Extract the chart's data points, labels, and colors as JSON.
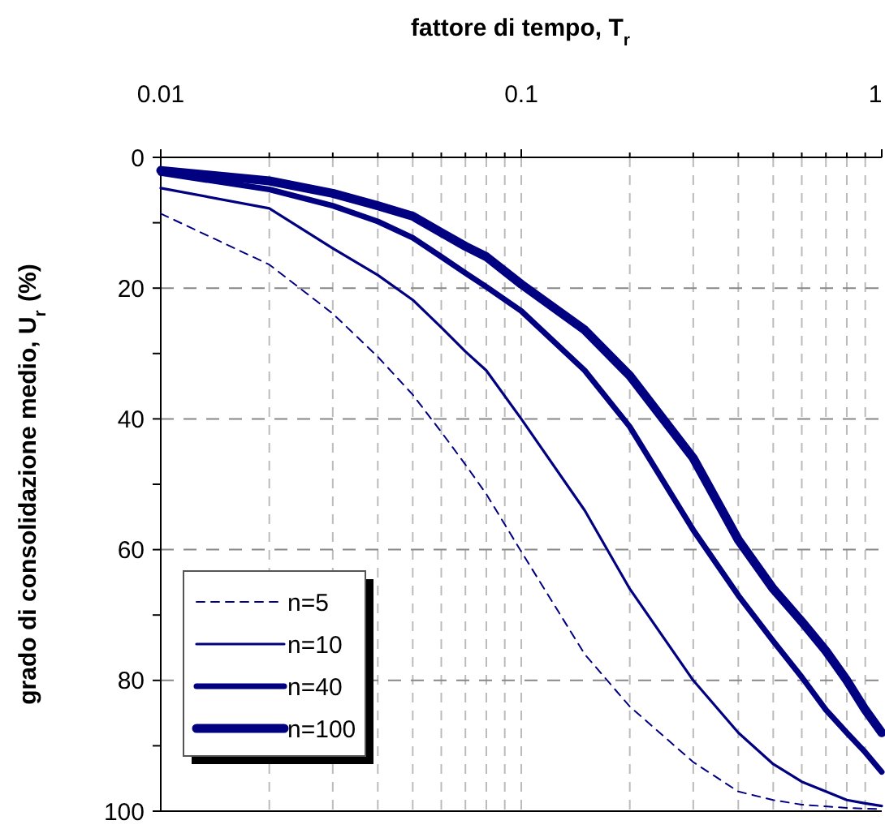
{
  "chart_data": {
    "type": "line",
    "xlabel": "fattore di tempo, T$_{r}$",
    "ylabel": "grado di consolidazione medio, U$_{r}$ (%)",
    "log": "x",
    "grid": true,
    "legend": "bottom left",
    "xlim": [
      0.01,
      1
    ],
    "ylim": [
      100,
      0
    ],
    "xticks": [
      0.01,
      {
        "value": 0.02,
        "label": null
      },
      {
        "value": 0.03,
        "label": null
      },
      {
        "value": 0.04,
        "label": null
      },
      {
        "value": 0.05,
        "label": null
      },
      {
        "value": 0.06,
        "label": null
      },
      {
        "value": 0.07,
        "label": null
      },
      {
        "value": 0.08,
        "label": null
      },
      {
        "value": 0.09,
        "label": null
      },
      0.1,
      {
        "value": 0.2,
        "label": null
      },
      {
        "value": 0.3,
        "label": null
      },
      {
        "value": 0.4,
        "label": null
      },
      {
        "value": 0.5,
        "label": null
      },
      {
        "value": 0.6,
        "label": null
      },
      {
        "value": 0.7,
        "label": null
      },
      {
        "value": 0.8,
        "label": null
      },
      {
        "value": 0.9,
        "label": null
      },
      1
    ],
    "yticks": [
      0,
      {
        "value": 10,
        "label": null
      },
      20,
      {
        "value": 30,
        "label": null
      },
      40,
      {
        "value": 50,
        "label": null
      },
      60,
      {
        "value": 70,
        "label": null
      },
      80,
      {
        "value": 90,
        "label": null
      },
      100
    ],
    "series": [
      {
        "name": "n=5",
        "color": "#000080",
        "line_style": "dashed",
        "x": [
          0.01,
          0.02,
          0.03,
          0.04,
          0.05,
          0.06,
          0.07,
          0.08,
          0.1,
          0.15,
          0.2,
          0.3,
          0.4,
          0.5,
          0.6,
          0.8,
          1
        ],
        "values": [
          8.6,
          16.4,
          23.9,
          30.5,
          36.3,
          42,
          47,
          51.5,
          60.3,
          76,
          84,
          92.5,
          97,
          98.3,
          99,
          99.5,
          99.7
        ]
      },
      {
        "name": "n=10",
        "color": "#000080",
        "line_style": "solid",
        "x": [
          0.01,
          0.02,
          0.03,
          0.04,
          0.05,
          0.06,
          0.07,
          0.08,
          0.1,
          0.15,
          0.2,
          0.3,
          0.4,
          0.5,
          0.6,
          0.7,
          0.8,
          0.9,
          1
        ],
        "values": [
          4.7,
          7.8,
          13.9,
          18,
          21.8,
          26,
          29.7,
          32.6,
          40,
          54,
          66,
          80,
          88,
          92.8,
          95.5,
          97,
          98.3,
          98.8,
          99.2
        ]
      },
      {
        "name": "n=40",
        "color": "#000080",
        "line_style": "solid",
        "x": [
          0.01,
          0.02,
          0.03,
          0.04,
          0.05,
          0.06,
          0.07,
          0.08,
          0.1,
          0.15,
          0.2,
          0.3,
          0.4,
          0.5,
          0.6,
          0.7,
          0.8,
          0.9,
          1
        ],
        "values": [
          2.4,
          4.9,
          7.4,
          9.8,
          12.3,
          15.2,
          17.7,
          19.8,
          23.5,
          32.6,
          41.2,
          57,
          67,
          74,
          79.5,
          84.5,
          88,
          91,
          94
        ]
      },
      {
        "name": "n=100",
        "color": "#000080",
        "line_style": "solid",
        "x": [
          0.01,
          0.02,
          0.03,
          0.04,
          0.05,
          0.06,
          0.07,
          0.08,
          0.1,
          0.15,
          0.2,
          0.3,
          0.4,
          0.5,
          0.6,
          0.7,
          0.8,
          0.9,
          1
        ],
        "values": [
          2,
          3.6,
          5.5,
          7.4,
          9,
          11.5,
          13.6,
          15.2,
          19.4,
          26.4,
          33.4,
          46,
          58.5,
          66,
          71,
          75.5,
          80,
          84.5,
          88
        ]
      }
    ]
  }
}
